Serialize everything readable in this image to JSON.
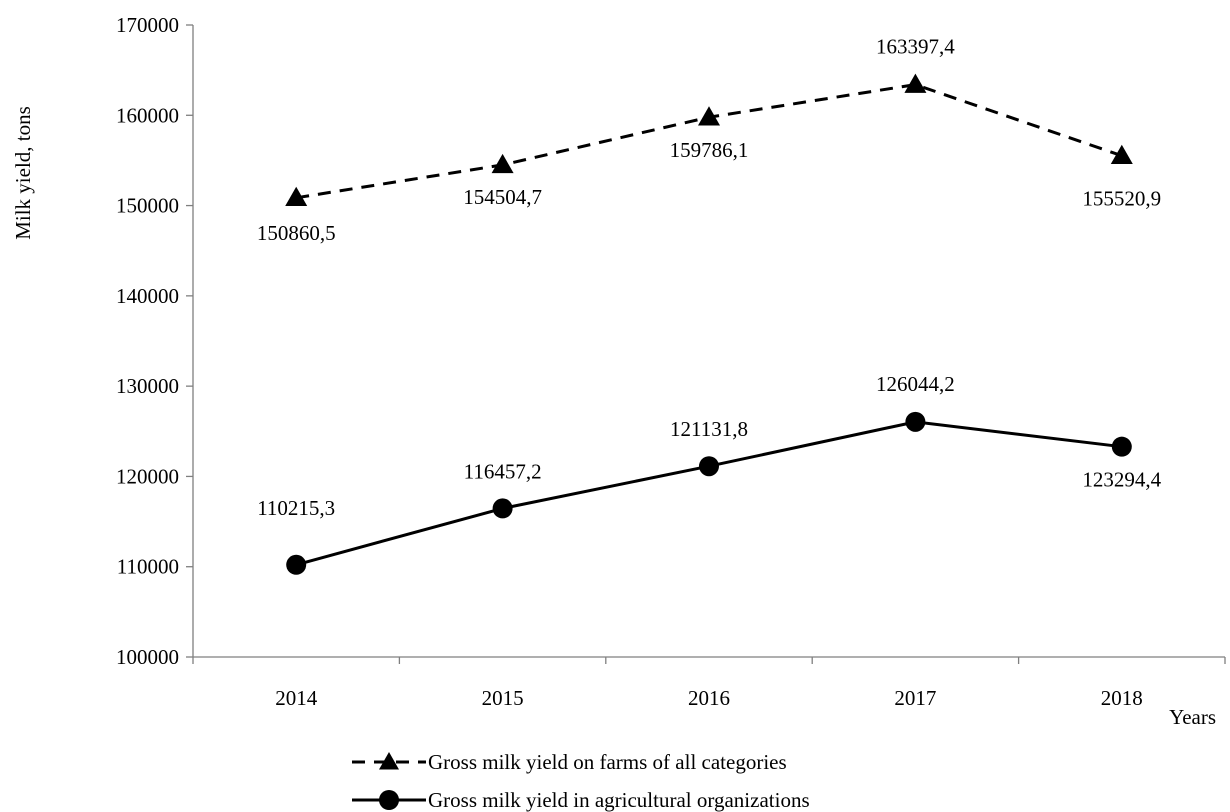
{
  "chart_data": {
    "type": "line",
    "xlabel": "Years",
    "ylabel": "Milk yield, tons",
    "ylim": [
      100000,
      170000
    ],
    "yticks": [
      100000,
      110000,
      120000,
      130000,
      140000,
      150000,
      160000,
      170000
    ],
    "categories": [
      "2014",
      "2015",
      "2016",
      "2017",
      "2018"
    ],
    "grid": false,
    "legend_position": "bottom",
    "series": [
      {
        "name": "Gross milk yield on farms of all categories",
        "values": [
          150860.5,
          154504.7,
          159786.1,
          163397.4,
          155520.9
        ],
        "labels": [
          "150860,5",
          "154504,7",
          "159786,1",
          "163397,4",
          "155520,9"
        ],
        "marker": "triangle",
        "line_style": "dashed",
        "color": "#000000"
      },
      {
        "name": "Gross milk yield in agricultural organizations",
        "values": [
          110215.3,
          116457.2,
          121131.8,
          126044.2,
          123294.4
        ],
        "labels": [
          "110215,3",
          "116457,2",
          "121131,8",
          "126044,2",
          "123294,4"
        ],
        "marker": "circle",
        "line_style": "solid",
        "color": "#000000"
      }
    ]
  }
}
